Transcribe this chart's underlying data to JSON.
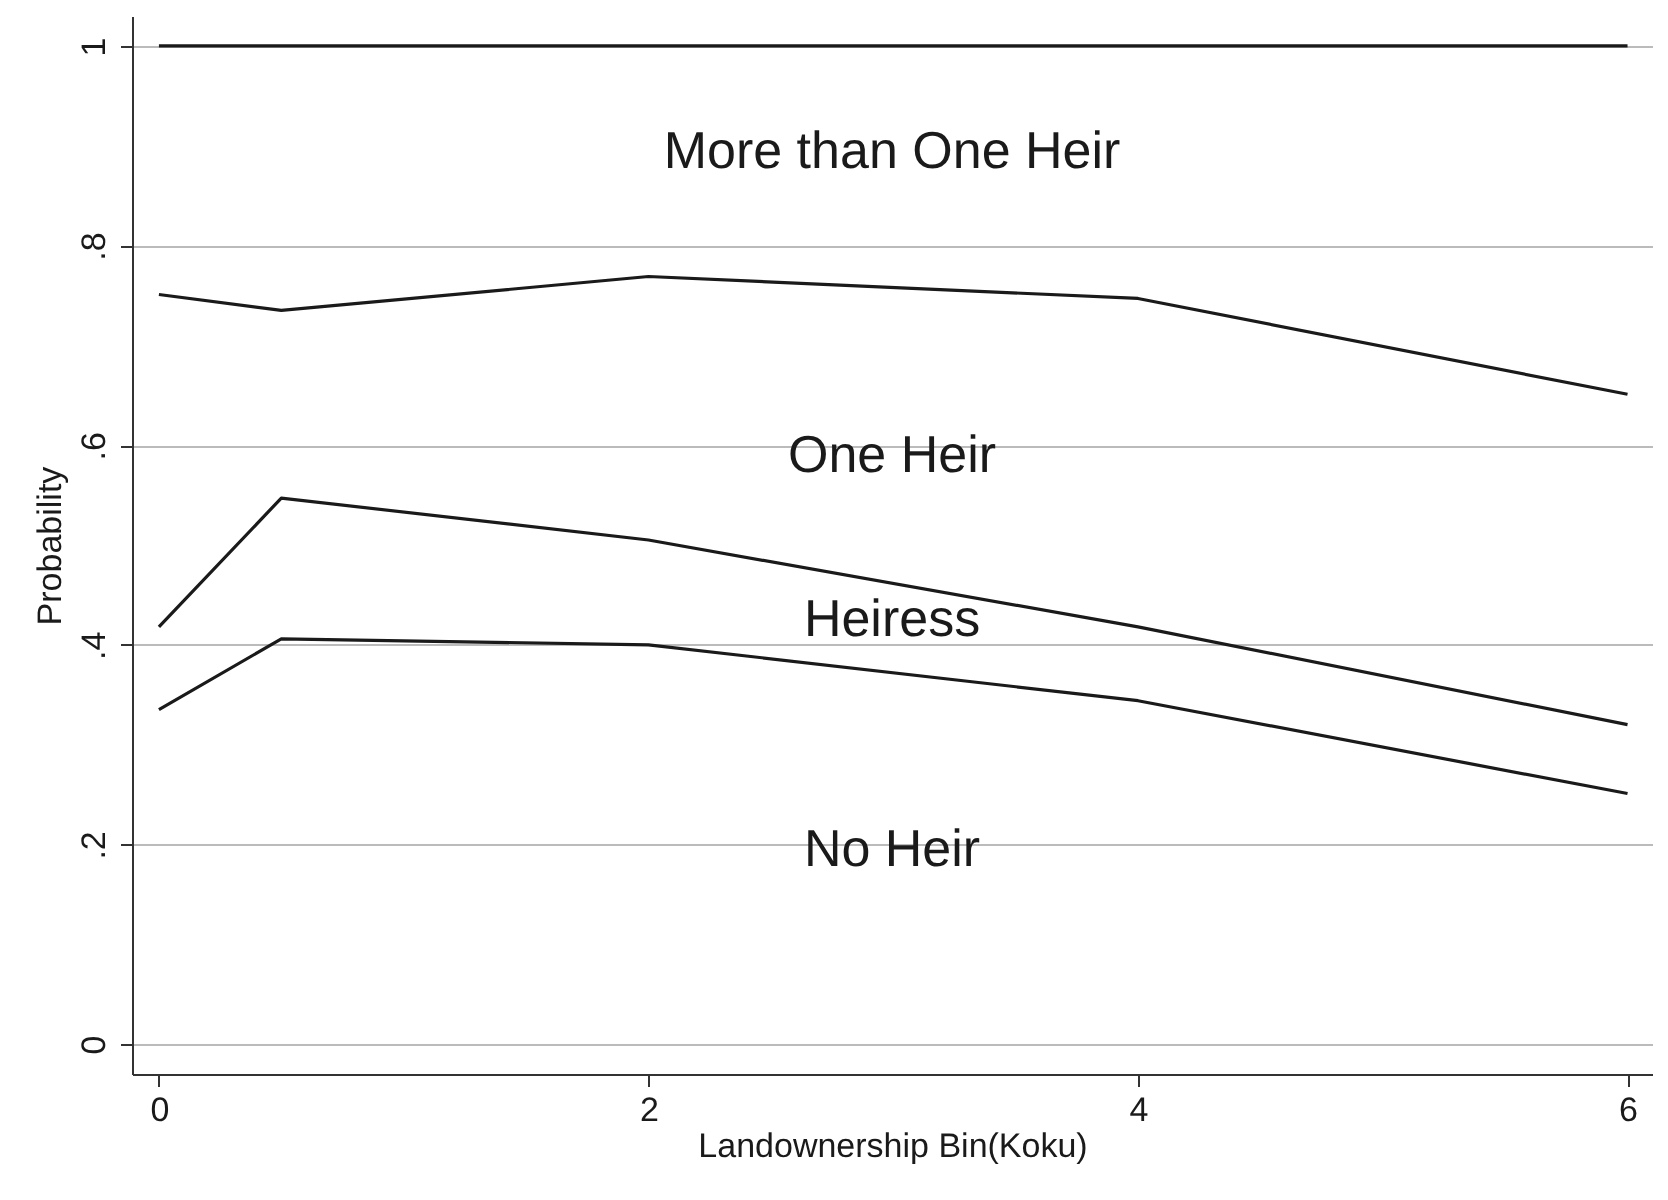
{
  "chart_data": {
    "type": "line",
    "xlabel": "Landownership Bin(Koku)",
    "ylabel": "Probability",
    "x": [
      0,
      0.5,
      2,
      4,
      6
    ],
    "series": [
      {
        "color": "#1a1a1a",
        "values": [
          1,
          1,
          1,
          1,
          1
        ]
      },
      {
        "color": "#1a1a1a",
        "values": [
          0.751,
          0.735,
          0.769,
          0.747,
          0.651
        ]
      },
      {
        "color": "#1a1a1a",
        "values": [
          0.418,
          0.547,
          0.505,
          0.418,
          0.32
        ]
      },
      {
        "color": "#1a1a1a",
        "values": [
          0.335,
          0.406,
          0.4,
          0.344,
          0.251
        ]
      }
    ],
    "xlim": [
      -0.11,
      6.1
    ],
    "ylim": [
      -0.03,
      1.03
    ],
    "xticks": [
      0,
      2,
      4,
      6
    ],
    "yticks": [
      {
        "value": 0,
        "label": "0"
      },
      {
        "value": 0.2,
        "label": ".2"
      },
      {
        "value": 0.4,
        "label": ".4"
      },
      {
        "value": 0.6,
        "label": ".6"
      },
      {
        "value": 0.8,
        "label": ".8"
      },
      {
        "value": 1,
        "label": "1"
      }
    ],
    "grid": "y",
    "marker": "none",
    "line_style": "solid",
    "annotations": [
      "More than One Heir",
      "One Heir",
      "Heiress",
      "No Heir"
    ]
  }
}
